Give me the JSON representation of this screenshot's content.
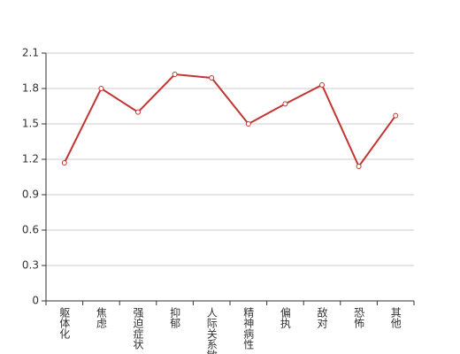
{
  "chart_data": {
    "type": "line",
    "categories": [
      "躯体化",
      "焦虑",
      "强迫症状",
      "抑郁",
      "人际关系敏感",
      "精神病性",
      "偏执",
      "敌对",
      "恐怖",
      "其他"
    ],
    "series": [
      {
        "color": "#c23531",
        "values": [
          1.17,
          1.8,
          1.6,
          1.92,
          1.89,
          1.5,
          1.67,
          1.83,
          1.14,
          1.57
        ]
      }
    ],
    "ylim": [
      0,
      2.1
    ],
    "yticks": [
      0,
      0.3,
      0.6,
      0.9,
      1.2,
      1.5,
      1.8,
      2.1
    ],
    "grid": true
  }
}
